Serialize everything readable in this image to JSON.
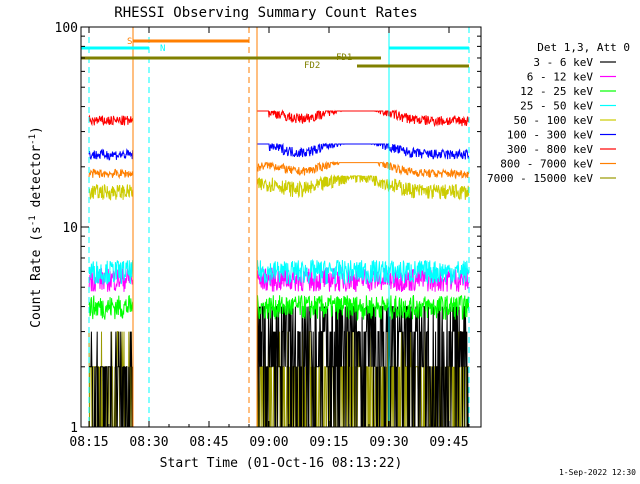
{
  "chart_data": {
    "type": "line",
    "title": "RHESSI Observing Summary Count Rates",
    "xlabel": "Start Time (01-Oct-16 08:13:22)",
    "ylabel": "Count Rate (s⁻¹ detector⁻¹)",
    "ylabel_parts": {
      "main": "Count Rate (s",
      "exp1": "-1",
      "mid": " detector",
      "exp2": "-1",
      "end": ")"
    },
    "yscale": "log",
    "xlim": [
      "08:13",
      "09:53"
    ],
    "ylim": [
      1,
      100
    ],
    "xticks": [
      "08:15",
      "08:30",
      "08:45",
      "09:00",
      "09:15",
      "09:30",
      "09:45"
    ],
    "yticks": [
      "1",
      "10",
      "100"
    ],
    "legend_title": "Det 1,3, Att 0",
    "legend_position": "right",
    "footer": "1-Sep-2022 12:30",
    "series": [
      {
        "name": "3 - 6 keV",
        "color": "#000000",
        "baseline": 2.2,
        "band": [
          1.0,
          4.0
        ],
        "noise": 0.45
      },
      {
        "name": "6 - 12 keV",
        "color": "#ff00ff",
        "baseline": 5.5,
        "band": [
          4.0,
          8.0
        ],
        "noise": 0.14
      },
      {
        "name": "12 - 25 keV",
        "color": "#00ff00",
        "baseline": 4.0,
        "band": [
          2.8,
          5.5
        ],
        "noise": 0.14
      },
      {
        "name": "25 - 50 keV",
        "color": "#00ffff",
        "baseline": 6.0,
        "band": [
          4.5,
          8.5
        ],
        "noise": 0.14
      },
      {
        "name": "50 - 100 keV",
        "color": "#cccc00",
        "baseline": 15,
        "band": [
          12,
          18
        ],
        "noise": 0.09
      },
      {
        "name": "100 - 300 keV",
        "color": "#0000ff",
        "baseline": 23,
        "band": [
          20,
          26
        ],
        "noise": 0.06
      },
      {
        "name": "300 - 800 keV",
        "color": "#ff0000",
        "baseline": 34,
        "band": [
          29,
          38
        ],
        "noise": 0.06
      },
      {
        "name": "800 - 7000 keV",
        "color": "#ff7f00",
        "baseline": 18.5,
        "band": [
          16,
          21
        ],
        "noise": 0.05
      },
      {
        "name": "7000 - 15000 keV",
        "color": "#999900",
        "baseline": 2.0,
        "band": [
          1.0,
          3.0
        ],
        "noise": 0.3
      }
    ],
    "data_segments": [
      {
        "start": "08:15",
        "end": "08:26"
      },
      {
        "start": "08:57",
        "end": "09:50"
      }
    ],
    "flag_bars": [
      {
        "label": "S",
        "color": "#ff7f00",
        "start": "08:26",
        "end": "08:55"
      },
      {
        "label": "N",
        "color": "#00ffff",
        "start": "08:13",
        "end": "08:30"
      },
      {
        "label": "N",
        "color": "#00ffff",
        "start": "09:30",
        "end": "09:50"
      },
      {
        "label": "FD1",
        "color": "#808000",
        "start": "08:13",
        "end": "09:28"
      },
      {
        "label": "FD2",
        "color": "#808000",
        "start": "09:22",
        "end": "09:50"
      }
    ],
    "flag_labels_drawn": [
      {
        "text": "S",
        "color": "#ff7f00"
      },
      {
        "text": "N",
        "color": "#00ffff"
      },
      {
        "text": "FD1",
        "color": "#808000"
      },
      {
        "text": "FD2",
        "color": "#808000"
      }
    ],
    "vertical_markers": [
      {
        "time": "08:15",
        "color": "#00ffff",
        "style": "dashed"
      },
      {
        "time": "08:26",
        "color": "#ff7f00",
        "style": "solid"
      },
      {
        "time": "08:30",
        "color": "#00ffff",
        "style": "dashed"
      },
      {
        "time": "08:55",
        "color": "#ff7f00",
        "style": "dashed"
      },
      {
        "time": "08:57",
        "color": "#ff7f00",
        "style": "solid"
      },
      {
        "time": "09:30",
        "color": "#00ffff",
        "style": "solid"
      },
      {
        "time": "09:50",
        "color": "#00ffff",
        "style": "dashed"
      }
    ]
  }
}
